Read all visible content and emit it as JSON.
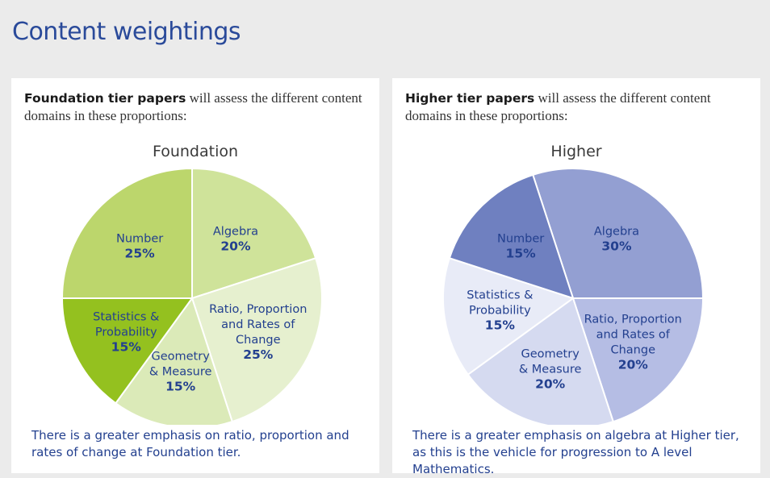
{
  "page": {
    "title": "Content weightings"
  },
  "colors": {
    "title": "#2a4a9a",
    "label": "#23408f"
  },
  "panels": {
    "foundation": {
      "intro_bold": "Foundation tier papers",
      "intro_rest": " will assess the different content domains in these proportions:",
      "footnote": "There is a greater emphasis on ratio, proportion and rates of change at Foundation tier."
    },
    "higher": {
      "intro_bold": "Higher tier papers",
      "intro_rest": " will assess the different content domains in these proportions:",
      "footnote": "There is a greater emphasis on algebra at Higher tier, as this is the vehicle for progression to A level Mathematics."
    }
  },
  "chart_data": [
    {
      "type": "pie",
      "title": "Foundation",
      "start_angle_deg": 0,
      "slices": [
        {
          "key": "algebra",
          "lines": [
            "Algebra"
          ],
          "value_label": "20%",
          "value": 20,
          "color": "#cfe39a"
        },
        {
          "key": "ratio",
          "lines": [
            "Ratio, Proportion",
            "and Rates of",
            "Change"
          ],
          "value_label": "25%",
          "value": 25,
          "color": "#e6f0cf"
        },
        {
          "key": "geometry",
          "lines": [
            "Geometry",
            "& Measure"
          ],
          "value_label": "15%",
          "value": 15,
          "color": "#dbeab8"
        },
        {
          "key": "statistics",
          "lines": [
            "Statistics &",
            "Probability"
          ],
          "value_label": "15%",
          "value": 15,
          "color": "#94c11f"
        },
        {
          "key": "number",
          "lines": [
            "Number"
          ],
          "value_label": "25%",
          "value": 25,
          "color": "#bcd66c"
        }
      ]
    },
    {
      "type": "pie",
      "title": "Higher",
      "start_angle_deg": -18,
      "slices": [
        {
          "key": "algebra",
          "lines": [
            "Algebra"
          ],
          "value_label": "30%",
          "value": 30,
          "color": "#939fd2"
        },
        {
          "key": "ratio",
          "lines": [
            "Ratio, Proportion",
            "and Rates of",
            "Change"
          ],
          "value_label": "20%",
          "value": 20,
          "color": "#b5bde4"
        },
        {
          "key": "geometry",
          "lines": [
            "Geometry",
            "& Measure"
          ],
          "value_label": "20%",
          "value": 20,
          "color": "#d5daf0"
        },
        {
          "key": "statistics",
          "lines": [
            "Statistics &",
            "Probability"
          ],
          "value_label": "15%",
          "value": 15,
          "color": "#e8ebf7"
        },
        {
          "key": "number",
          "lines": [
            "Number"
          ],
          "value_label": "15%",
          "value": 15,
          "color": "#6f80c0"
        }
      ]
    }
  ]
}
